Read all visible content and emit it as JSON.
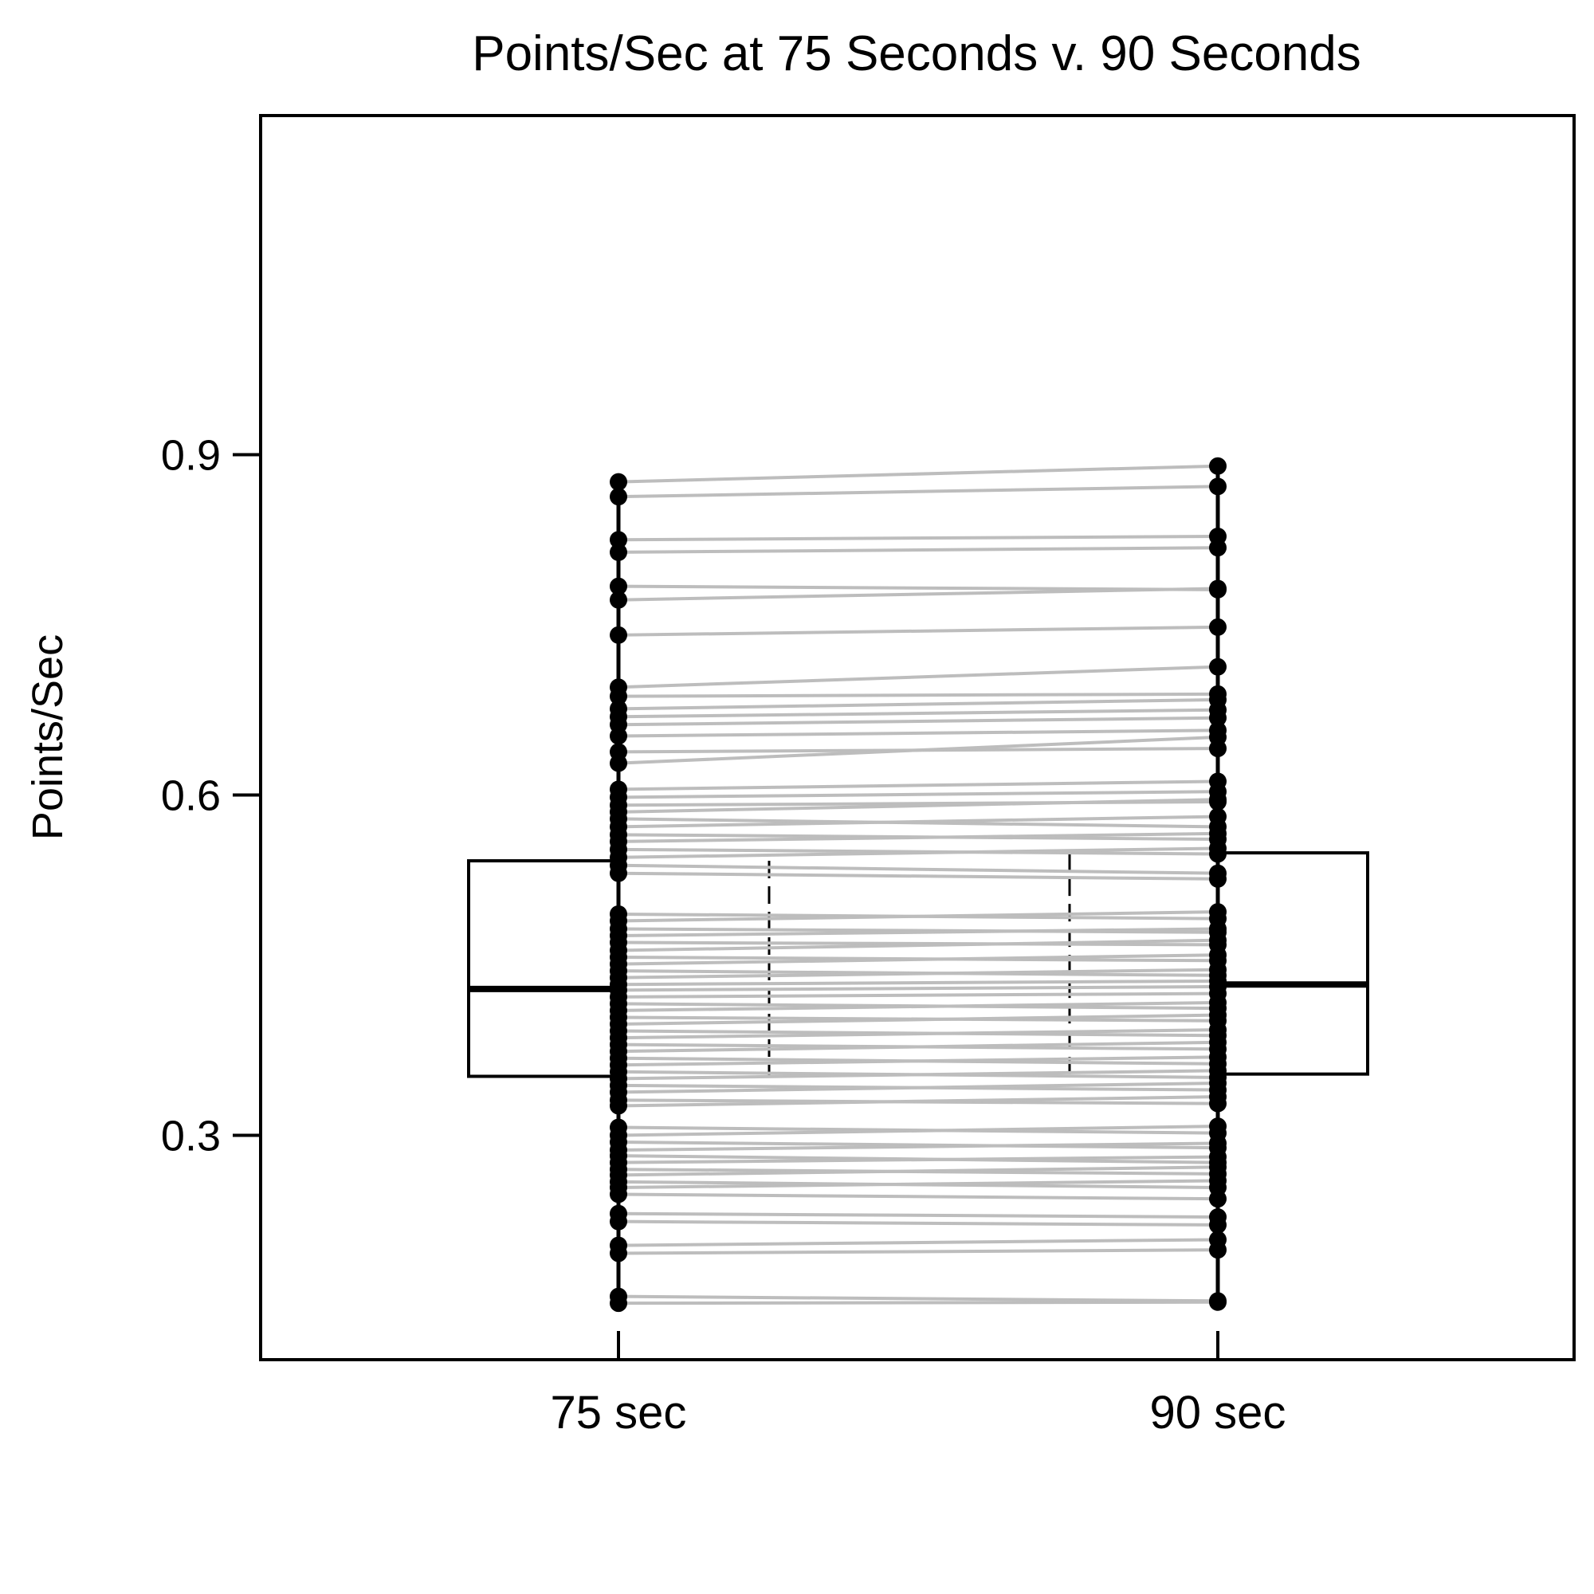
{
  "chart_data": {
    "type": "boxplot-paired",
    "title": "Points/Sec at 75 Seconds v. 90 Seconds",
    "xlabel": "",
    "ylabel": "Points/Sec",
    "categories": [
      "75 sec",
      "90 sec"
    ],
    "ylim": [
      0.1,
      1.2
    ],
    "yticks": [
      0.3,
      0.6,
      0.9
    ],
    "ytick_labels": [
      "0.3",
      "0.6",
      "0.9"
    ],
    "grid": false,
    "legend": "none",
    "boxes": [
      {
        "category": "75 sec",
        "q1": 0.352,
        "median": 0.429,
        "q3": 0.542,
        "whisker_low": 0.152,
        "whisker_high": 0.879
      },
      {
        "category": "90 sec",
        "q1": 0.354,
        "median": 0.433,
        "q3": 0.549,
        "whisker_low": 0.154,
        "whisker_high": 0.892
      }
    ],
    "paired_values": [
      [
        0.876,
        0.89
      ],
      [
        0.863,
        0.872
      ],
      [
        0.825,
        0.828
      ],
      [
        0.814,
        0.818
      ],
      [
        0.784,
        0.781
      ],
      [
        0.772,
        0.782
      ],
      [
        0.741,
        0.748
      ],
      [
        0.695,
        0.713
      ],
      [
        0.687,
        0.689
      ],
      [
        0.676,
        0.684
      ],
      [
        0.669,
        0.675
      ],
      [
        0.662,
        0.668
      ],
      [
        0.652,
        0.657
      ],
      [
        0.638,
        0.641
      ],
      [
        0.628,
        0.651
      ],
      [
        0.605,
        0.612
      ],
      [
        0.598,
        0.603
      ],
      [
        0.591,
        0.594
      ],
      [
        0.585,
        0.596
      ],
      [
        0.579,
        0.572
      ],
      [
        0.572,
        0.581
      ],
      [
        0.565,
        0.561
      ],
      [
        0.559,
        0.566
      ],
      [
        0.552,
        0.548
      ],
      [
        0.545,
        0.553
      ],
      [
        0.538,
        0.531
      ],
      [
        0.531,
        0.526
      ],
      [
        0.495,
        0.491
      ],
      [
        0.489,
        0.497
      ],
      [
        0.482,
        0.479
      ],
      [
        0.476,
        0.482
      ],
      [
        0.47,
        0.468
      ],
      [
        0.463,
        0.472
      ],
      [
        0.457,
        0.454
      ],
      [
        0.451,
        0.459
      ],
      [
        0.445,
        0.441
      ],
      [
        0.439,
        0.446
      ],
      [
        0.433,
        0.436
      ],
      [
        0.428,
        0.431
      ],
      [
        0.422,
        0.425
      ],
      [
        0.416,
        0.412
      ],
      [
        0.41,
        0.417
      ],
      [
        0.404,
        0.401
      ],
      [
        0.398,
        0.406
      ],
      [
        0.392,
        0.388
      ],
      [
        0.386,
        0.393
      ],
      [
        0.38,
        0.376
      ],
      [
        0.374,
        0.382
      ],
      [
        0.368,
        0.363
      ],
      [
        0.362,
        0.369
      ],
      [
        0.356,
        0.351
      ],
      [
        0.35,
        0.357
      ],
      [
        0.344,
        0.34
      ],
      [
        0.338,
        0.346
      ],
      [
        0.331,
        0.328
      ],
      [
        0.326,
        0.334
      ],
      [
        0.307,
        0.302
      ],
      [
        0.3,
        0.308
      ],
      [
        0.294,
        0.289
      ],
      [
        0.287,
        0.293
      ],
      [
        0.282,
        0.276
      ],
      [
        0.276,
        0.281
      ],
      [
        0.27,
        0.266
      ],
      [
        0.265,
        0.272
      ],
      [
        0.259,
        0.254
      ],
      [
        0.254,
        0.26
      ],
      [
        0.248,
        0.244
      ],
      [
        0.231,
        0.228
      ],
      [
        0.224,
        0.221
      ],
      [
        0.203,
        0.208
      ],
      [
        0.196,
        0.199
      ],
      [
        0.158,
        0.154
      ],
      [
        0.152,
        0.153
      ]
    ]
  }
}
